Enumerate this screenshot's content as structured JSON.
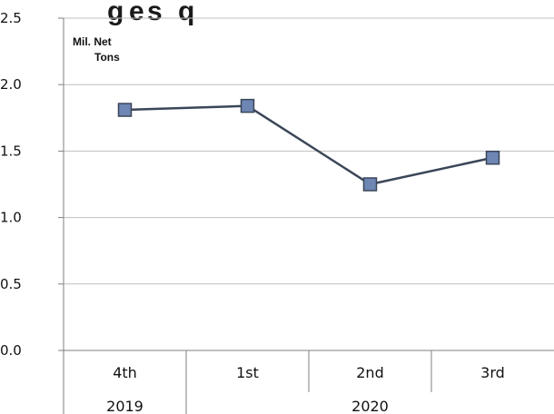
{
  "chart_data": {
    "type": "line",
    "title": "",
    "unit_label": [
      "Mil. Net",
      "Tons"
    ],
    "categories": [
      "4th",
      "1st",
      "2nd",
      "3rd"
    ],
    "year_groups": [
      {
        "label": "2019",
        "span": 1
      },
      {
        "label": "2020",
        "span": 3
      }
    ],
    "series": [
      {
        "values": [
          1.81,
          1.84,
          1.25,
          1.45
        ],
        "color": "#3a4658",
        "marker_color": "#6e86b4"
      }
    ],
    "ylim": [
      0,
      2.5
    ],
    "yticks": [
      "0.0",
      "0.5",
      "1.0",
      "1.5",
      "2.0",
      "2.5"
    ],
    "grid": true
  }
}
